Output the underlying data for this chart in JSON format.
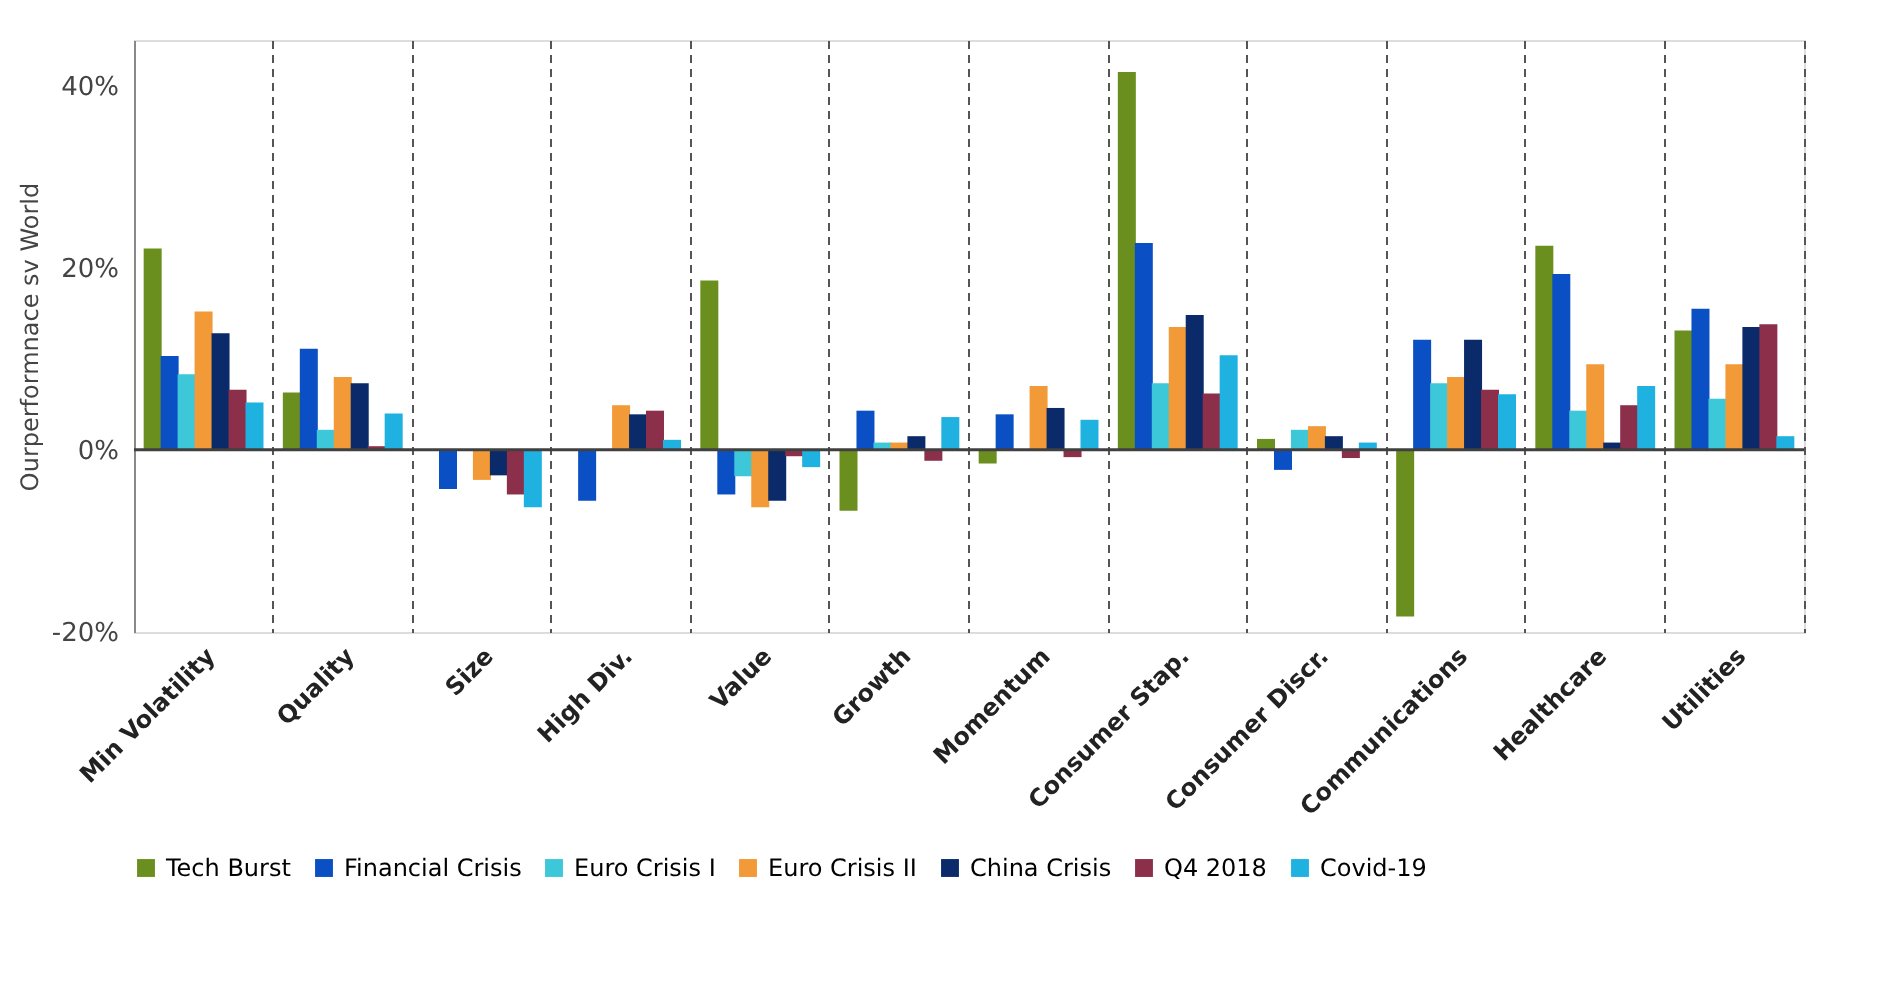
{
  "chart_data": {
    "type": "bar",
    "ylabel": "Ourperformnace sv World",
    "categories": [
      "Min Volatility",
      "Quality",
      "Size",
      "High Div.",
      "Value",
      "Growth",
      "Momentum",
      "Consumer Stap.",
      "Consumer Discr.",
      "Communications",
      "Healthcare",
      "Utilities"
    ],
    "series": [
      {
        "name": "Tech Burst",
        "color": "#6a8f1f",
        "values": [
          22.1,
          6.3,
          0,
          0,
          18.6,
          -6.7,
          -1.5,
          41.5,
          1.2,
          -18.3,
          22.4,
          13.1
        ]
      },
      {
        "name": "Financial Crisis",
        "color": "#0b4fc4",
        "values": [
          10.3,
          11.1,
          -4.3,
          -5.6,
          -4.9,
          4.3,
          3.9,
          22.7,
          -2.2,
          12.1,
          19.3,
          15.5
        ]
      },
      {
        "name": "Euro Crisis I",
        "color": "#3cc8d8",
        "values": [
          8.3,
          2.2,
          null,
          null,
          -2.9,
          0.8,
          null,
          7.3,
          2.2,
          7.3,
          4.3,
          5.6
        ]
      },
      {
        "name": "Euro Crisis II",
        "color": "#f29a38",
        "values": [
          15.2,
          8.0,
          -3.3,
          4.9,
          -6.3,
          0.8,
          7.0,
          13.5,
          2.6,
          8.0,
          9.4,
          9.4
        ]
      },
      {
        "name": "China Crisis",
        "color": "#0a2a6a",
        "values": [
          12.8,
          7.3,
          -2.8,
          3.9,
          -5.6,
          1.5,
          4.6,
          14.8,
          1.5,
          12.1,
          0.8,
          13.5
        ]
      },
      {
        "name": "Q4 2018",
        "color": "#8b2f4a",
        "values": [
          6.6,
          0.4,
          -4.9,
          4.3,
          -0.7,
          -1.2,
          -0.8,
          6.2,
          -0.9,
          6.6,
          4.9,
          13.8
        ]
      },
      {
        "name": "Covid-19",
        "color": "#1fb2e0",
        "values": [
          5.2,
          4.0,
          -6.3,
          1.1,
          -1.9,
          3.6,
          3.3,
          10.4,
          0.8,
          6.1,
          7.0,
          1.5
        ]
      }
    ],
    "ylim": [
      -20,
      45
    ],
    "yticks": [
      {
        "value": -20,
        "label": "-20%"
      },
      {
        "value": 0,
        "label": "0%"
      },
      {
        "value": 20,
        "label": "20%"
      },
      {
        "value": 40,
        "label": "40%"
      }
    ],
    "ref_lines": [
      {
        "axis": "y",
        "value": 0,
        "color": "#404040"
      }
    ],
    "grid": "x",
    "legend": "bottom"
  }
}
